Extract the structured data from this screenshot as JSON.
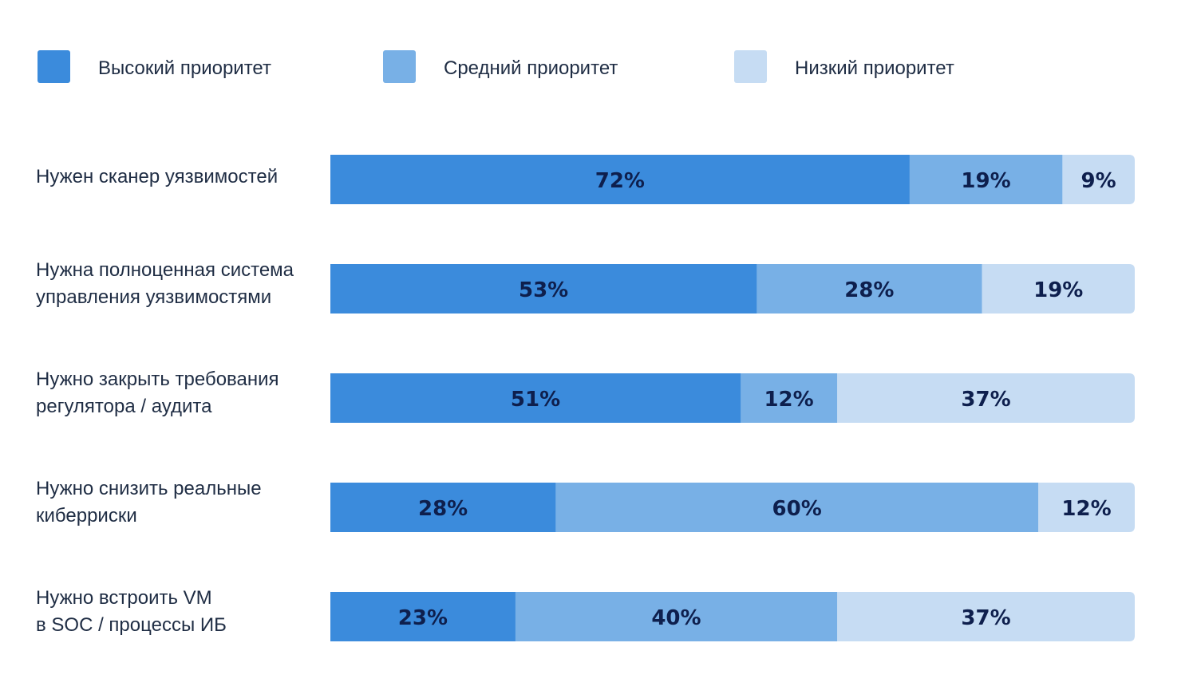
{
  "chart_data": {
    "type": "bar",
    "orientation": "horizontal",
    "stacked": true,
    "unit": "%",
    "title": "",
    "xlabel": "",
    "ylabel": "",
    "xlim": [
      0,
      100
    ],
    "grid": false,
    "legend_position": "top",
    "categories": [
      [
        "Нужен сканер уязвимостей"
      ],
      [
        "Нужна полноценная система",
        "управления уязвимостями"
      ],
      [
        "Нужно закрыть требования",
        "регулятора / аудита"
      ],
      [
        "Нужно снизить реальные",
        "киберриски"
      ],
      [
        "Нужно встроить VM",
        "в SOC / процессы ИБ"
      ]
    ],
    "series": [
      {
        "name": "Высокий приоритет",
        "color": "#3b8bdc",
        "values": [
          72,
          53,
          51,
          28,
          23
        ]
      },
      {
        "name": "Средний приоритет",
        "color": "#78b0e6",
        "values": [
          19,
          28,
          12,
          60,
          40
        ]
      },
      {
        "name": "Низкий приоритет",
        "color": "#c6dcf3",
        "values": [
          9,
          19,
          37,
          12,
          37
        ]
      }
    ]
  }
}
